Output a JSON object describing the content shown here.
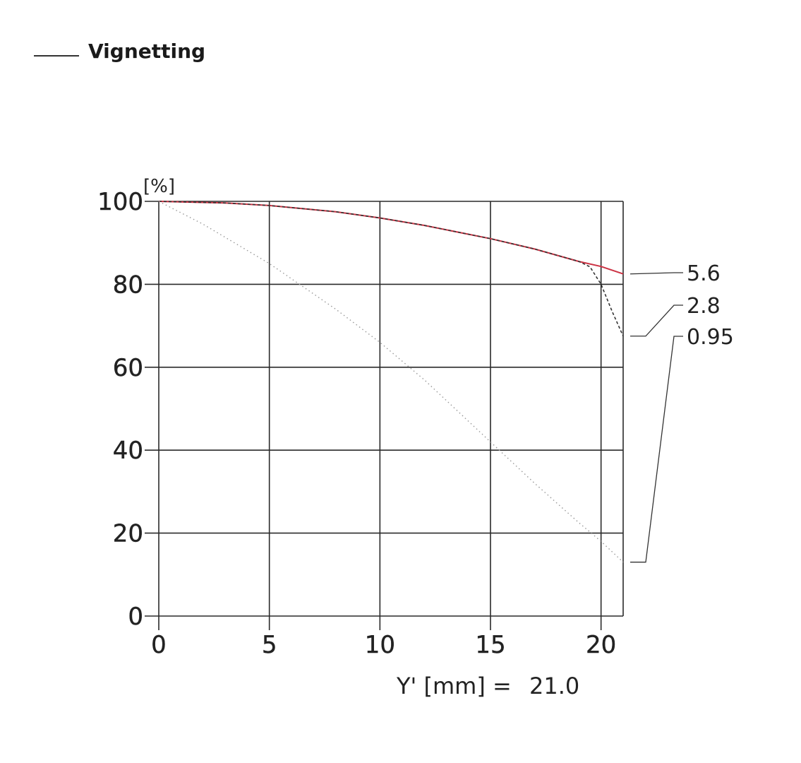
{
  "chart_data": {
    "type": "line",
    "title": "Vignetting",
    "ylabel_unit": "[%]",
    "xlabel": "Y' [mm] =",
    "xlabel_value": "21.0",
    "xlim": [
      0,
      21
    ],
    "ylim": [
      0,
      100
    ],
    "x_ticks": [
      "0",
      "5",
      "10",
      "15",
      "20"
    ],
    "y_ticks": [
      "0",
      "20",
      "40",
      "60",
      "80",
      "100"
    ],
    "grid": true,
    "series": [
      {
        "name": "5.6",
        "style": "solid",
        "color": "#cc3344",
        "x": [
          0,
          3,
          5,
          8,
          10,
          12,
          15,
          17,
          19,
          20,
          21
        ],
        "y": [
          100,
          99.6,
          99,
          97.5,
          96,
          94.2,
          91,
          88.5,
          85.5,
          84.3,
          82.5
        ]
      },
      {
        "name": "2.8",
        "style": "dashed",
        "color": "#333333",
        "x": [
          0,
          3,
          5,
          8,
          10,
          12,
          15,
          17,
          19,
          19.5,
          20,
          20.5,
          21
        ],
        "y": [
          100,
          99.6,
          99,
          97.5,
          96,
          94.2,
          91,
          88.5,
          85.5,
          84.2,
          80,
          73.5,
          67.5
        ]
      },
      {
        "name": "0.95",
        "style": "dotted",
        "color": "#999999",
        "x": [
          0,
          2,
          5,
          8,
          10,
          12,
          15,
          17,
          19,
          20,
          21
        ],
        "y": [
          100,
          94.5,
          85,
          74,
          66,
          57,
          42,
          32,
          22.5,
          18,
          13
        ]
      }
    ],
    "series_label_values": [
      82.5,
      67.5,
      13
    ]
  }
}
